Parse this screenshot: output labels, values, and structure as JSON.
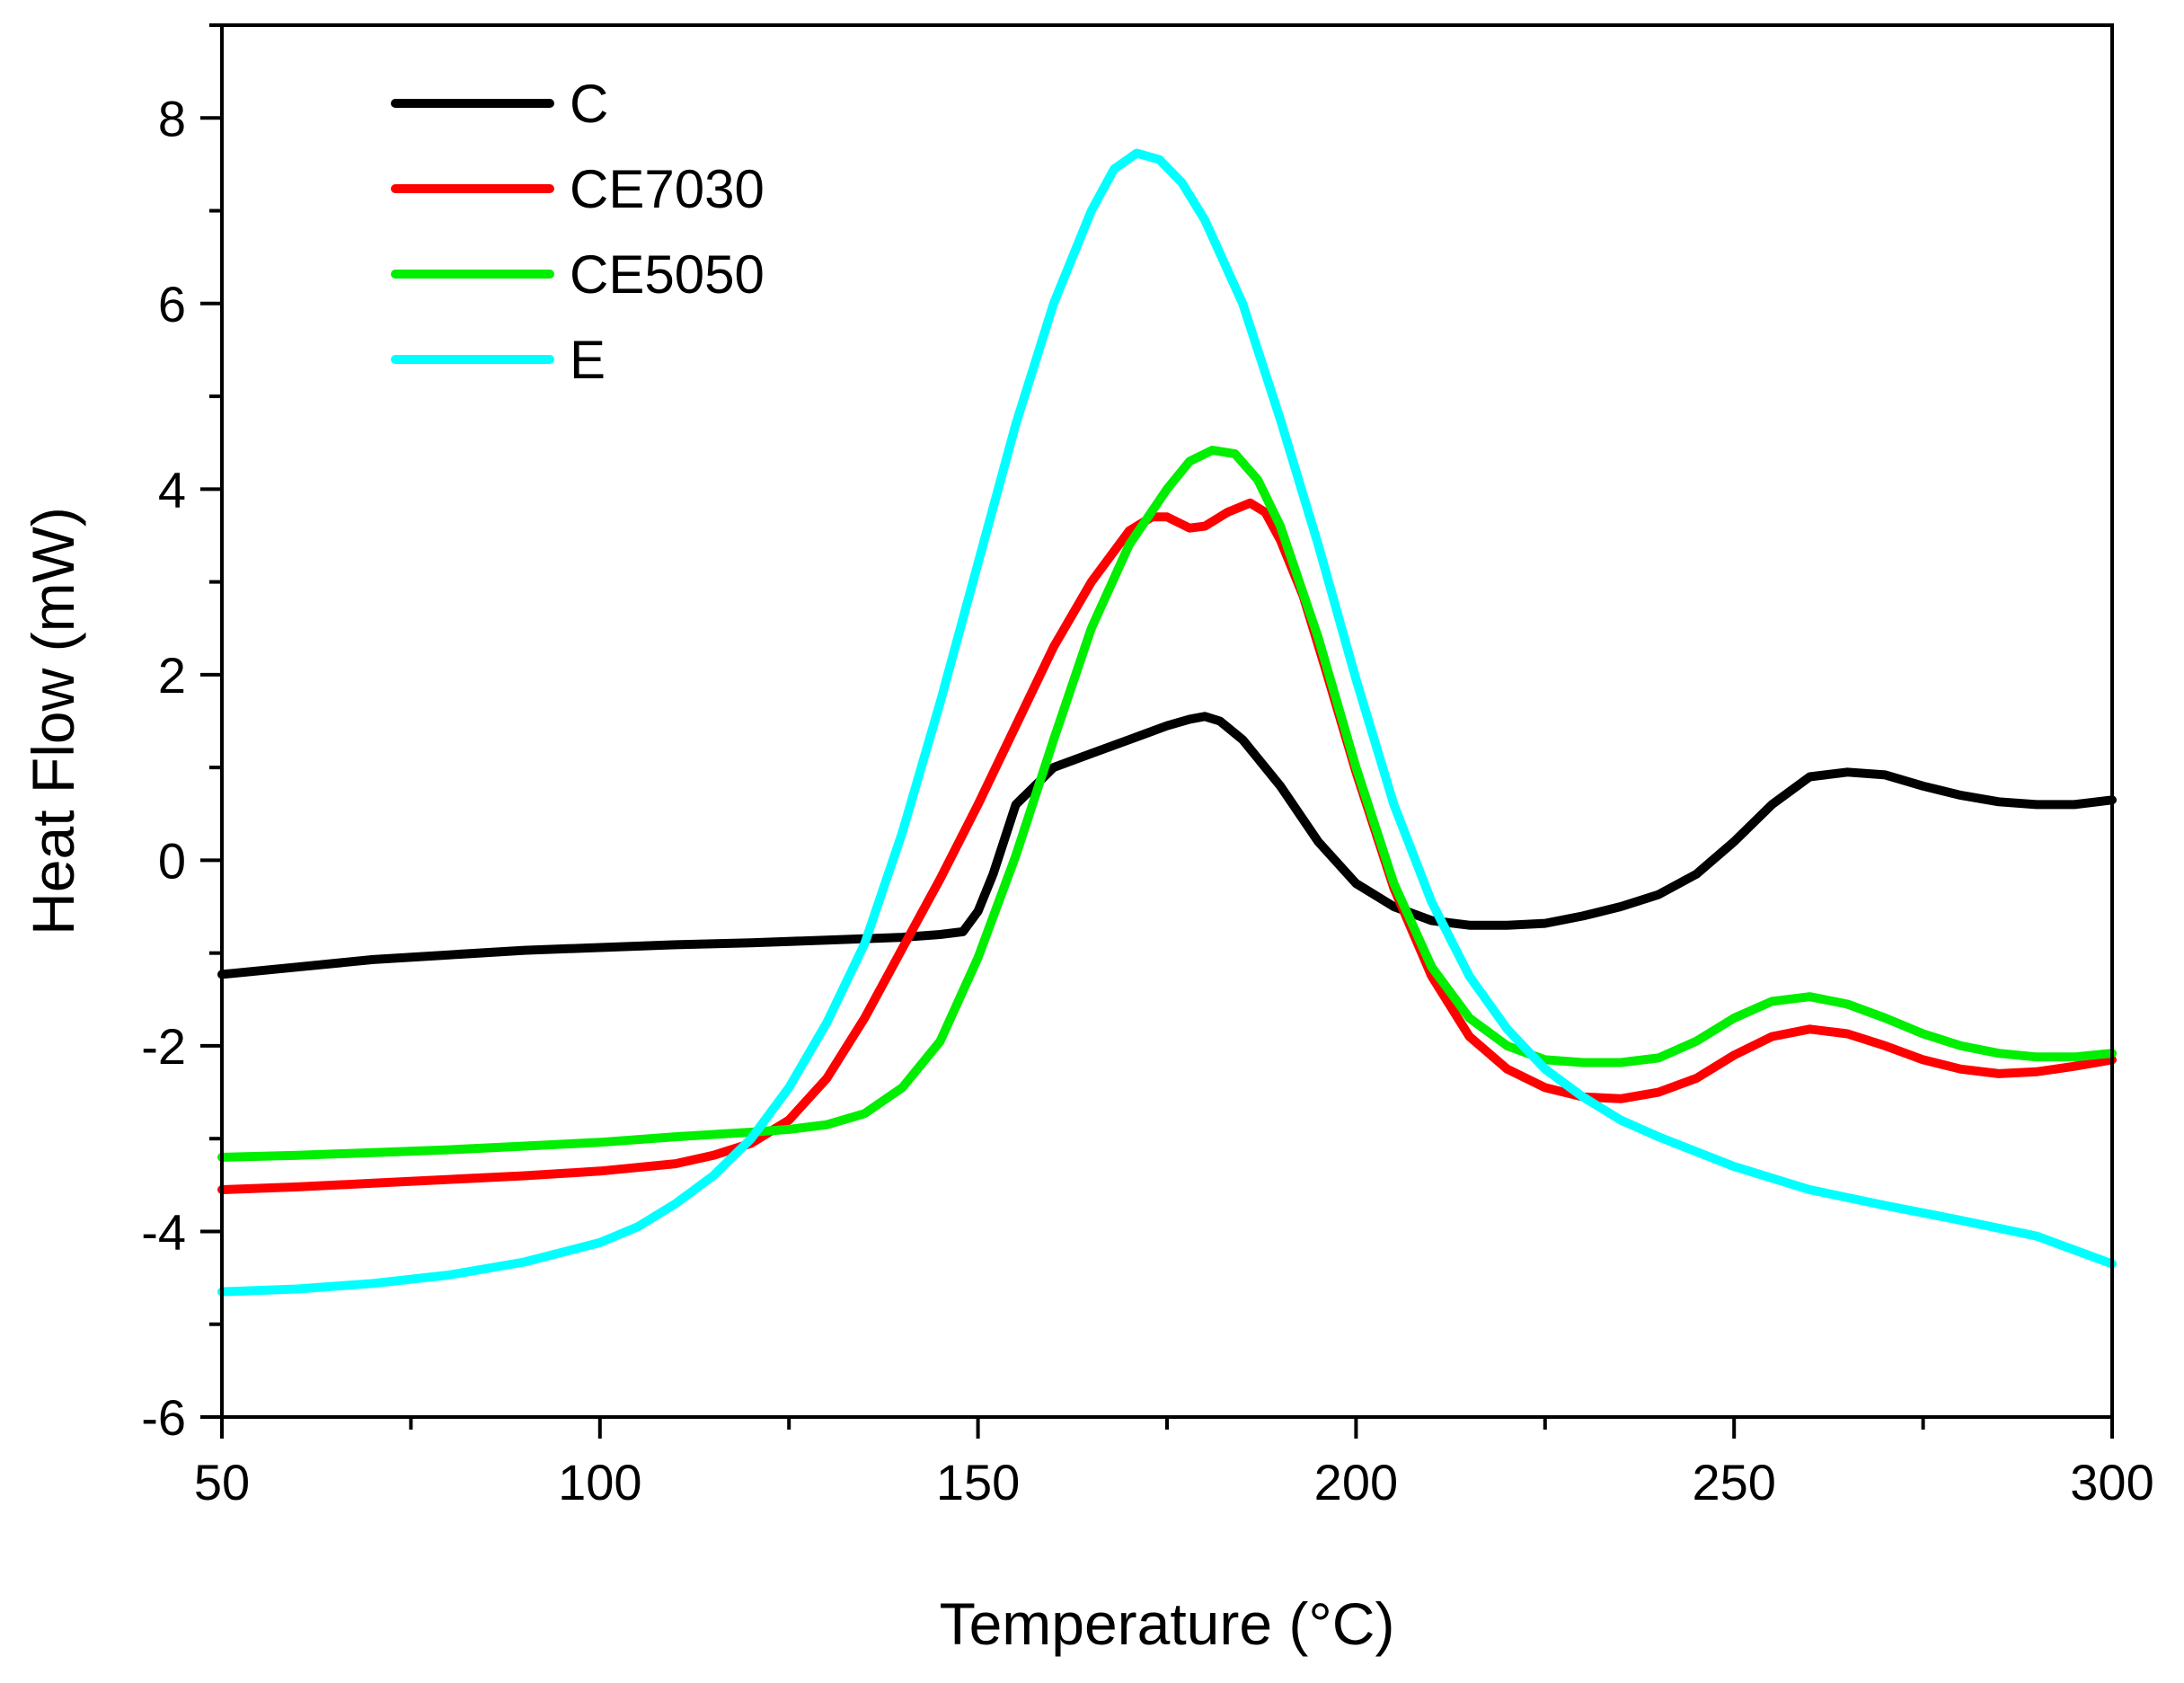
{
  "chart_data": {
    "type": "line",
    "title": "",
    "xlabel": "Temperature (°C)",
    "ylabel": "Heat Flow (mW)",
    "xlim": [
      50,
      300
    ],
    "ylim": [
      -6,
      9
    ],
    "xticks": [
      50,
      100,
      150,
      200,
      250,
      300
    ],
    "xtick_labels": [
      "50",
      "100",
      "150",
      "200",
      "250",
      "300"
    ],
    "yticks": [
      -6,
      -4,
      -2,
      0,
      2,
      4,
      6,
      8
    ],
    "ytick_labels": [
      "-6",
      "-4",
      "-2",
      "0",
      "2",
      "4",
      "6",
      "8"
    ],
    "grid": false,
    "legend_position": "top-left",
    "series": [
      {
        "name": "C",
        "color": "#000000",
        "x": [
          50,
          60,
          70,
          80,
          90,
          100,
          110,
          120,
          130,
          140,
          145,
          148,
          150,
          152,
          155,
          160,
          165,
          170,
          175,
          178,
          180,
          182,
          185,
          190,
          195,
          200,
          205,
          210,
          215,
          220,
          225,
          230,
          235,
          240,
          245,
          250,
          255,
          260,
          265,
          270,
          275,
          280,
          285,
          290,
          295,
          300
        ],
        "y": [
          -1.23,
          -1.15,
          -1.07,
          -1.02,
          -0.97,
          -0.94,
          -0.91,
          -0.89,
          -0.86,
          -0.83,
          -0.8,
          -0.77,
          -0.55,
          -0.15,
          0.6,
          1.0,
          1.15,
          1.3,
          1.45,
          1.52,
          1.55,
          1.5,
          1.3,
          0.8,
          0.2,
          -0.25,
          -0.5,
          -0.65,
          -0.7,
          -0.7,
          -0.68,
          -0.6,
          -0.5,
          -0.37,
          -0.15,
          0.2,
          0.6,
          0.9,
          0.95,
          0.92,
          0.8,
          0.7,
          0.63,
          0.6,
          0.6,
          0.65
        ]
      },
      {
        "name": "CE7030",
        "color": "#ff0000",
        "x": [
          50,
          60,
          70,
          80,
          90,
          100,
          110,
          115,
          120,
          125,
          130,
          135,
          140,
          145,
          150,
          155,
          160,
          165,
          170,
          173,
          175,
          178,
          180,
          183,
          186,
          188,
          190,
          193,
          196,
          200,
          205,
          210,
          215,
          220,
          225,
          230,
          235,
          240,
          245,
          250,
          255,
          260,
          265,
          270,
          275,
          280,
          285,
          290,
          295,
          300
        ],
        "y": [
          -3.55,
          -3.52,
          -3.48,
          -3.44,
          -3.4,
          -3.35,
          -3.27,
          -3.18,
          -3.05,
          -2.8,
          -2.35,
          -1.7,
          -0.95,
          -0.2,
          0.6,
          1.45,
          2.3,
          3.0,
          3.55,
          3.7,
          3.7,
          3.58,
          3.6,
          3.75,
          3.85,
          3.75,
          3.45,
          2.85,
          2.05,
          0.95,
          -0.3,
          -1.25,
          -1.9,
          -2.25,
          -2.45,
          -2.55,
          -2.57,
          -2.5,
          -2.35,
          -2.1,
          -1.9,
          -1.82,
          -1.87,
          -2.0,
          -2.15,
          -2.25,
          -2.3,
          -2.28,
          -2.22,
          -2.15
        ]
      },
      {
        "name": "CE5050",
        "color": "#00ee00",
        "x": [
          50,
          60,
          70,
          80,
          90,
          100,
          110,
          120,
          125,
          130,
          135,
          140,
          145,
          150,
          155,
          160,
          165,
          170,
          175,
          178,
          181,
          184,
          187,
          190,
          195,
          200,
          205,
          210,
          215,
          220,
          225,
          230,
          235,
          240,
          245,
          250,
          255,
          260,
          265,
          270,
          275,
          280,
          285,
          290,
          295,
          300
        ],
        "y": [
          -3.2,
          -3.18,
          -3.15,
          -3.12,
          -3.08,
          -3.04,
          -2.98,
          -2.93,
          -2.9,
          -2.85,
          -2.73,
          -2.45,
          -1.95,
          -1.05,
          0.05,
          1.3,
          2.5,
          3.4,
          4.0,
          4.3,
          4.42,
          4.38,
          4.1,
          3.6,
          2.4,
          1.0,
          -0.25,
          -1.15,
          -1.7,
          -2.0,
          -2.15,
          -2.18,
          -2.18,
          -2.13,
          -1.95,
          -1.7,
          -1.52,
          -1.47,
          -1.55,
          -1.7,
          -1.87,
          -2.0,
          -2.08,
          -2.12,
          -2.12,
          -2.08
        ]
      },
      {
        "name": "E",
        "color": "#00ffff",
        "x": [
          50,
          60,
          70,
          80,
          90,
          100,
          105,
          110,
          115,
          120,
          125,
          130,
          135,
          140,
          145,
          150,
          155,
          160,
          165,
          168,
          171,
          174,
          177,
          180,
          185,
          190,
          195,
          200,
          205,
          210,
          215,
          220,
          225,
          230,
          235,
          240,
          250,
          260,
          270,
          280,
          290,
          295,
          300
        ],
        "y": [
          -4.65,
          -4.62,
          -4.56,
          -4.47,
          -4.33,
          -4.12,
          -3.95,
          -3.7,
          -3.4,
          -3.0,
          -2.45,
          -1.75,
          -0.9,
          0.3,
          1.7,
          3.2,
          4.7,
          6.0,
          7.0,
          7.45,
          7.62,
          7.55,
          7.3,
          6.9,
          6.0,
          4.75,
          3.4,
          1.95,
          0.6,
          -0.45,
          -1.25,
          -1.82,
          -2.25,
          -2.55,
          -2.8,
          -2.98,
          -3.3,
          -3.55,
          -3.72,
          -3.88,
          -4.05,
          -4.2,
          -4.35
        ]
      }
    ]
  }
}
